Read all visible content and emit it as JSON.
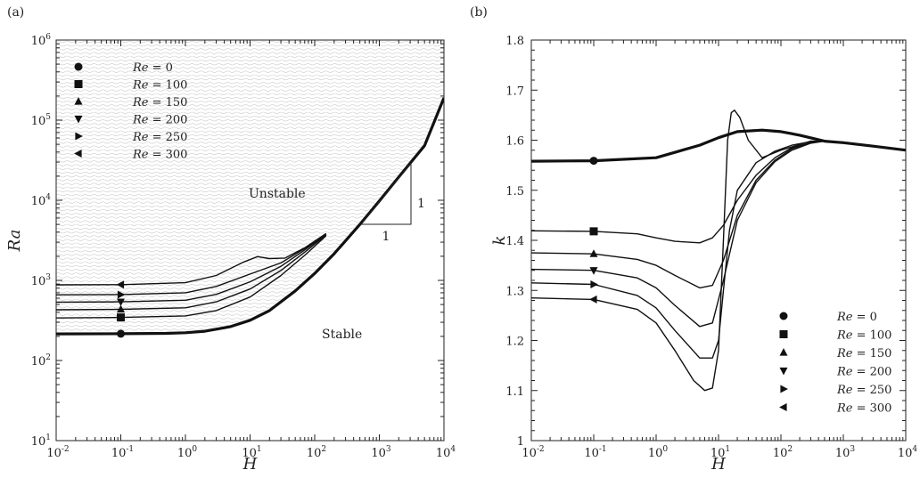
{
  "chart_data": [
    {
      "panel_label": "(a)",
      "type": "line",
      "xlabel": "H",
      "ylabel": "Ra",
      "x_scale": "log",
      "y_scale": "log",
      "xlim": [
        0.01,
        10000
      ],
      "ylim": [
        10,
        1000000
      ],
      "x_ticks": [
        {
          "value": 0.01,
          "base": "10",
          "exp": "-2"
        },
        {
          "value": 0.1,
          "base": "10",
          "exp": "-1"
        },
        {
          "value": 1,
          "base": "10",
          "exp": "0"
        },
        {
          "value": 10,
          "base": "10",
          "exp": "1"
        },
        {
          "value": 100,
          "base": "10",
          "exp": "2"
        },
        {
          "value": 1000,
          "base": "10",
          "exp": "3"
        },
        {
          "value": 10000,
          "base": "10",
          "exp": "4"
        }
      ],
      "y_ticks": [
        {
          "value": 10,
          "base": "10",
          "exp": "1"
        },
        {
          "value": 100,
          "base": "10",
          "exp": "2"
        },
        {
          "value": 1000,
          "base": "10",
          "exp": "3"
        },
        {
          "value": 10000,
          "base": "10",
          "exp": "4"
        },
        {
          "value": 100000,
          "base": "10",
          "exp": "5"
        },
        {
          "value": 1000000,
          "base": "10",
          "exp": "6"
        }
      ],
      "annotations": {
        "unstable": "Unstable",
        "stable": "Stable",
        "slope_rise": "1",
        "slope_run": "1"
      },
      "legend_placement": "top-left",
      "series": [
        {
          "name": "Re = 0",
          "re": "0",
          "marker": "circle",
          "bold": true,
          "marker_x": 0.1,
          "x": [
            0.01,
            0.1,
            0.5,
            1,
            2,
            5,
            10,
            20,
            50,
            100,
            200,
            500,
            1000,
            2000,
            5000,
            10000
          ],
          "y": [
            215,
            216,
            218,
            222,
            232,
            265,
            318,
            420,
            740,
            1220,
            2150,
            5000,
            9800,
            19500,
            48000,
            190000
          ]
        },
        {
          "name": "Re = 100",
          "re": "100",
          "marker": "square",
          "bold": false,
          "marker_x": 0.1,
          "x": [
            0.01,
            0.1,
            1,
            3,
            10,
            30,
            70,
            150
          ],
          "y": [
            340,
            345,
            360,
            420,
            620,
            1150,
            2050,
            3600
          ]
        },
        {
          "name": "Re = 150",
          "re": "150",
          "marker": "triangle-up",
          "bold": false,
          "marker_x": 0.1,
          "x": [
            0.01,
            0.1,
            1,
            3,
            10,
            30,
            70,
            150
          ],
          "y": [
            430,
            435,
            455,
            540,
            780,
            1330,
            2250,
            3700
          ]
        },
        {
          "name": "Re = 200",
          "re": "200",
          "marker": "triangle-down",
          "bold": false,
          "marker_x": 0.1,
          "x": [
            0.01,
            0.1,
            1,
            3,
            10,
            30,
            70,
            150
          ],
          "y": [
            535,
            540,
            565,
            670,
            960,
            1500,
            2400,
            3750
          ]
        },
        {
          "name": "Re = 250",
          "re": "250",
          "marker": "triangle-right",
          "bold": false,
          "marker_x": 0.1,
          "x": [
            0.01,
            0.1,
            1,
            3,
            10,
            30,
            70,
            150
          ],
          "y": [
            660,
            665,
            700,
            840,
            1200,
            1650,
            2500,
            3800
          ]
        },
        {
          "name": "Re = 300",
          "re": "300",
          "marker": "triangle-left",
          "bold": false,
          "marker_x": 0.1,
          "x": [
            0.01,
            0.1,
            1,
            3,
            8,
            13,
            20,
            35,
            70,
            150
          ],
          "y": [
            880,
            885,
            935,
            1150,
            1700,
            1980,
            1870,
            1900,
            2550,
            3850
          ]
        }
      ]
    },
    {
      "panel_label": "(b)",
      "type": "line",
      "xlabel": "H",
      "ylabel": "k",
      "x_scale": "log",
      "y_scale": "linear",
      "xlim": [
        0.01,
        10000
      ],
      "ylim": [
        1.0,
        1.8
      ],
      "x_ticks": [
        {
          "value": 0.01,
          "base": "10",
          "exp": "-2"
        },
        {
          "value": 0.1,
          "base": "10",
          "exp": "-1"
        },
        {
          "value": 1,
          "base": "10",
          "exp": "0"
        },
        {
          "value": 10,
          "base": "10",
          "exp": "1"
        },
        {
          "value": 100,
          "base": "10",
          "exp": "2"
        },
        {
          "value": 1000,
          "base": "10",
          "exp": "3"
        },
        {
          "value": 10000,
          "base": "10",
          "exp": "4"
        }
      ],
      "y_ticks": [
        {
          "value": 1.0,
          "label": "1"
        },
        {
          "value": 1.1,
          "label": "1.1"
        },
        {
          "value": 1.2,
          "label": "1.2"
        },
        {
          "value": 1.3,
          "label": "1.3"
        },
        {
          "value": 1.4,
          "label": "1.4"
        },
        {
          "value": 1.5,
          "label": "1.5"
        },
        {
          "value": 1.6,
          "label": "1.6"
        },
        {
          "value": 1.7,
          "label": "1.7"
        },
        {
          "value": 1.8,
          "label": "1.8"
        }
      ],
      "legend_placement": "bottom-right",
      "series": [
        {
          "name": "Re = 0",
          "re": "0",
          "marker": "circle",
          "bold": true,
          "marker_x": 0.1,
          "x": [
            0.01,
            0.1,
            1,
            5,
            10,
            20,
            50,
            100,
            200,
            500,
            1000,
            3000,
            10000
          ],
          "y": [
            1.558,
            1.559,
            1.565,
            1.59,
            1.605,
            1.617,
            1.62,
            1.617,
            1.61,
            1.598,
            1.595,
            1.588,
            1.58
          ]
        },
        {
          "name": "Re = 100",
          "re": "100",
          "marker": "square",
          "bold": false,
          "marker_x": 0.1,
          "x": [
            0.01,
            0.1,
            0.5,
            1,
            2,
            5,
            8,
            12,
            20,
            40,
            80,
            150,
            300,
            500,
            1000
          ],
          "y": [
            1.419,
            1.418,
            1.413,
            1.405,
            1.398,
            1.395,
            1.405,
            1.43,
            1.48,
            1.53,
            1.565,
            1.585,
            1.595,
            1.598,
            1.596
          ]
        },
        {
          "name": "Re = 150",
          "re": "150",
          "marker": "triangle-up",
          "bold": false,
          "marker_x": 0.1,
          "x": [
            0.01,
            0.1,
            0.5,
            1,
            2,
            5,
            8,
            12,
            20,
            40,
            80,
            150,
            300,
            500,
            1000
          ],
          "y": [
            1.375,
            1.373,
            1.362,
            1.35,
            1.33,
            1.305,
            1.31,
            1.36,
            1.45,
            1.52,
            1.56,
            1.583,
            1.595,
            1.598,
            1.596
          ]
        },
        {
          "name": "Re = 200",
          "re": "200",
          "marker": "triangle-down",
          "bold": false,
          "marker_x": 0.1,
          "x": [
            0.01,
            0.1,
            0.5,
            1,
            2,
            5,
            8,
            12,
            20,
            40,
            80,
            150,
            300,
            500,
            1000
          ],
          "y": [
            1.342,
            1.34,
            1.325,
            1.305,
            1.27,
            1.228,
            1.235,
            1.32,
            1.44,
            1.515,
            1.557,
            1.58,
            1.594,
            1.598,
            1.596
          ]
        },
        {
          "name": "Re = 250",
          "re": "250",
          "marker": "triangle-right",
          "bold": false,
          "marker_x": 0.1,
          "x": [
            0.01,
            0.1,
            0.5,
            1,
            2,
            5,
            8,
            10,
            12,
            15,
            20,
            40,
            80,
            150,
            300,
            500,
            1000
          ],
          "y": [
            1.315,
            1.312,
            1.29,
            1.265,
            1.22,
            1.165,
            1.165,
            1.2,
            1.3,
            1.42,
            1.5,
            1.555,
            1.578,
            1.59,
            1.597,
            1.598,
            1.596
          ]
        },
        {
          "name": "Re = 300",
          "re": "300",
          "marker": "triangle-left",
          "bold": false,
          "marker_x": 0.1,
          "x": [
            0.01,
            0.1,
            0.5,
            1,
            2,
            4,
            6,
            8,
            10,
            12,
            14,
            16,
            18,
            22,
            30,
            50,
            100,
            300,
            500,
            1000
          ],
          "y": [
            1.285,
            1.282,
            1.262,
            1.235,
            1.18,
            1.12,
            1.1,
            1.105,
            1.18,
            1.4,
            1.6,
            1.655,
            1.66,
            1.645,
            1.6,
            1.565,
            1.58,
            1.598,
            1.598,
            1.596
          ]
        }
      ]
    }
  ]
}
